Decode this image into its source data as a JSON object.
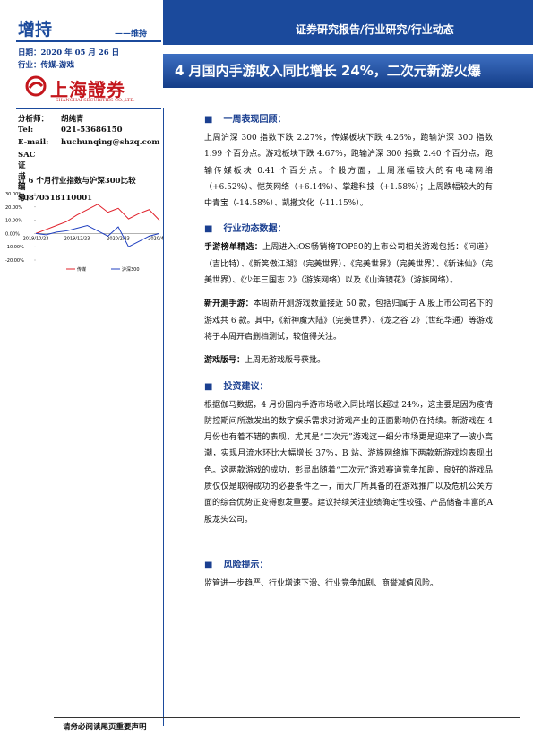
{
  "header": {
    "rating": "增持",
    "rating_prev": "——维持",
    "report_type": "证券研究报告/行业研究/行业动态",
    "title": "4 月国内手游收入同比增长 24%，二次元新游火爆"
  },
  "sidebar": {
    "date": "日期：2020 年 05 月 26 日",
    "industry": "行业：传媒-游戏",
    "logo_cn": "上海證券",
    "logo_en": "SHANGHAI SECURITIES CO.,LTD.",
    "analyst": [
      [
        "分析师：",
        "胡纯青"
      ],
      [
        "Tel:",
        "021-53686150"
      ],
      [
        "E-mail:",
        "huchunqing@shzq.com"
      ],
      [
        "SAC 证书编号：",
        "S0870518110001"
      ]
    ]
  },
  "chart": {
    "type": "line",
    "title": "近 6 个月行业指数与沪深300比较",
    "categories": [
      "2019/10/23",
      null,
      null,
      null,
      "2019/12/23",
      null,
      null,
      null,
      "2020/2/23",
      null,
      null,
      null,
      "2020/4/23"
    ],
    "series": [
      {
        "name": "传媒",
        "color": "#e0202a",
        "values": [
          0,
          3,
          6,
          9,
          14,
          18,
          22,
          16,
          19,
          11,
          15,
          18,
          10
        ]
      },
      {
        "name": "沪深300",
        "color": "#2040c0",
        "values": [
          0,
          -1,
          1,
          2,
          4,
          6,
          2,
          -2,
          5,
          -10,
          -6,
          -2,
          0
        ]
      }
    ],
    "ylim": [
      -20,
      30
    ],
    "yticks": [
      {
        "value": 30,
        "label": "30.00%"
      },
      {
        "value": 20,
        "label": "20.00%"
      },
      {
        "value": 10,
        "label": "10.00%"
      },
      {
        "value": 0,
        "label": "0.00%"
      },
      {
        "value": -10,
        "label": "-10.00%"
      },
      {
        "value": -20,
        "label": "-20.00%"
      }
    ]
  },
  "body": {
    "sections": [
      {
        "heading": "一周表现回顾：",
        "paragraphs": [
          {
            "lead": null,
            "text": "上周沪深 300 指数下跌 2.27%，传媒板块下跌 4.26%，跑输沪深 300 指数 1.99 个百分点。游戏板块下跌 4.67%，跑输沪深 300 指数 2.40 个百分点，跑输传媒板块 0.41 个百分点。个股方面，上周涨幅较大的有电魂网络（+6.52%）、恺英网络（+6.14%）、掌趣科技（+1.58%）；上周跌幅较大的有中青宝（-14.58%）、凯撒文化（-11.15%）。"
          }
        ]
      },
      {
        "heading": "行业动态数据：",
        "paragraphs": [
          {
            "lead": "手游榜单精选：",
            "text": "上周进入iOS畅销榜TOP50的上市公司相关游戏包括：《问道》（吉比特）、《新笑傲江湖》（完美世界）、《完美世界》（完美世界）、《新诛仙》（完美世界）、《少年三国志 2》（游族网络）以及《山海镜花》（游族网络）。"
          },
          {
            "lead": "新开测手游：",
            "text": "本周新开测游戏数量接近 50 款，包括归属于 A 股上市公司名下的游戏共 6 款。其中，《新神魔大陆》（完美世界）、《龙之谷 2》（世纪华通）等游戏将于本周开启删档测试，较值得关注。"
          },
          {
            "lead": "游戏版号：",
            "text": "上周无游戏版号获批。"
          }
        ]
      },
      {
        "heading": "投资建议：",
        "paragraphs": [
          {
            "lead": null,
            "text": "根据伽马数据，4 月份国内手游市场收入同比增长超过 24%，这主要是因为疫情防控期间所激发出的数字娱乐需求对游戏产业的正面影响仍在持续。新游戏在 4 月份也有着不错的表现，尤其是“二次元”游戏这一细分市场更是迎来了一波小高潮，实现月流水环比大幅增长 37%，B 站、游族网络旗下两款新游戏均表现出色。这两款游戏的成功，彰显出随着“二次元”游戏赛道竞争加剧，良好的游戏品质仅仅是取得成功的必要条件之一，而大厂所具备的在游戏推广以及危机公关方面的综合优势正变得愈发重要。建议持续关注业绩确定性较强、产品储备丰富的A股龙头公司。"
          }
        ]
      },
      {
        "heading": "风险提示：",
        "paragraphs": [
          {
            "lead": null,
            "text": "监管进一步趋严、行业增速下滑、行业竞争加剧、商誉减值风险。"
          }
        ]
      }
    ]
  },
  "footer": {
    "text": "请务必阅读尾页重要声明"
  }
}
